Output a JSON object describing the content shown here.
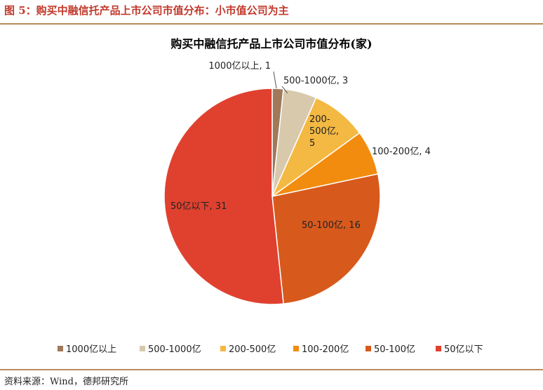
{
  "figure": {
    "title": "图 5：购买中融信托产品上市公司市值分布：小市值公司为主",
    "source": "资料来源：Wind，德邦研究所"
  },
  "chart_data": {
    "type": "pie",
    "title": "购买中融信托产品上市公司市值分布(家)",
    "slices": [
      {
        "name": "1000亿以上",
        "value": 1,
        "color": "#a0785a",
        "label": "1000亿以上, 1"
      },
      {
        "name": "500-1000亿",
        "value": 3,
        "color": "#d8c9ad",
        "label": "500-1000亿, 3"
      },
      {
        "name": "200-500亿",
        "value": 5,
        "color": "#f4b942",
        "label_lines": [
          "200-",
          "500亿,",
          "5"
        ]
      },
      {
        "name": "100-200亿",
        "value": 4,
        "color": "#f28c0f",
        "label": "100-200亿, 4"
      },
      {
        "name": "50-100亿",
        "value": 16,
        "color": "#d75a1c",
        "label": "50-100亿, 16"
      },
      {
        "name": "50亿以下",
        "value": 31,
        "color": "#e0412f",
        "label": "50亿以下, 31"
      }
    ],
    "legend_position": "bottom"
  }
}
